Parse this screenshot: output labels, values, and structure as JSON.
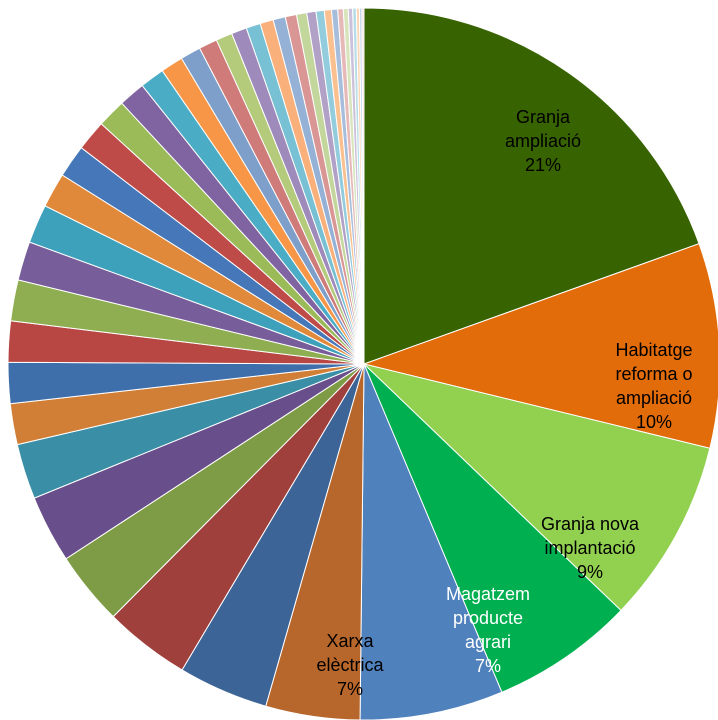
{
  "chart_data": {
    "type": "pie",
    "title": "",
    "slices": [
      {
        "name": "Granja ampliació",
        "value": 21,
        "label_lines": [
          "Granja",
          "ampliació",
          "21%"
        ],
        "color": "#376300"
      },
      {
        "name": "Habitatge reforma o ampliació",
        "value": 10,
        "label_lines": [
          "Habitatge",
          "reforma o",
          "ampliació",
          "10%"
        ],
        "color": "#E26B0A"
      },
      {
        "name": "Granja nova implantació",
        "value": 9,
        "label_lines": [
          "Granja nova",
          "implantació",
          "9%"
        ],
        "color": "#92D050"
      },
      {
        "name": "Magatzem producte agrari",
        "value": 7,
        "label_lines": [
          "Magatzem",
          "producte",
          "agrari",
          "7%"
        ],
        "color": "#00B050"
      },
      {
        "name": "Xarxa elèctrica",
        "value": 7,
        "label_lines": [
          "Xarxa",
          "elèctrica",
          "7%"
        ],
        "color": "#4F81BD"
      },
      {
        "value": 4.6,
        "color": "#B8672C"
      },
      {
        "value": 4.4,
        "color": "#3C6497"
      },
      {
        "value": 4.2,
        "color": "#A0403D"
      },
      {
        "value": 3.6,
        "color": "#7E9B45"
      },
      {
        "value": 3.3,
        "color": "#684E8A"
      },
      {
        "value": 2.7,
        "color": "#3A8FA7"
      },
      {
        "value": 2.0,
        "color": "#D17F36"
      },
      {
        "value": 2.0,
        "color": "#3F6FAB"
      },
      {
        "value": 2.0,
        "color": "#B84744"
      },
      {
        "value": 2.0,
        "color": "#8EAE51"
      },
      {
        "value": 1.9,
        "color": "#775D9A"
      },
      {
        "value": 1.9,
        "color": "#3EA1BB"
      },
      {
        "value": 1.7,
        "color": "#E0893A"
      },
      {
        "value": 1.6,
        "color": "#4677B8"
      },
      {
        "value": 1.5,
        "color": "#BE4B48"
      },
      {
        "value": 1.4,
        "color": "#9BBB59"
      },
      {
        "value": 1.3,
        "color": "#8064A2"
      },
      {
        "value": 1.2,
        "color": "#4BACC6"
      },
      {
        "value": 1.1,
        "color": "#F79646"
      },
      {
        "value": 1.0,
        "color": "#7F9FCB"
      },
      {
        "value": 0.9,
        "color": "#CF7B79"
      },
      {
        "value": 0.8,
        "color": "#B3CB7B"
      },
      {
        "value": 0.75,
        "color": "#9F8BBB"
      },
      {
        "value": 0.7,
        "color": "#78C1D5"
      },
      {
        "value": 0.65,
        "color": "#F9B07A"
      },
      {
        "value": 0.6,
        "color": "#95B1D6"
      },
      {
        "value": 0.55,
        "color": "#D99694"
      },
      {
        "value": 0.5,
        "color": "#C3D69B"
      },
      {
        "value": 0.45,
        "color": "#B2A1C7"
      },
      {
        "value": 0.4,
        "color": "#93CDDD"
      },
      {
        "value": 0.35,
        "color": "#FAC08F"
      },
      {
        "value": 0.3,
        "color": "#A6BDDB"
      },
      {
        "value": 0.27,
        "color": "#E6B9B8"
      },
      {
        "value": 0.24,
        "color": "#D7E4BC"
      },
      {
        "value": 0.21,
        "color": "#CCC1DA"
      },
      {
        "value": 0.18,
        "color": "#B7DEE8"
      },
      {
        "value": 0.15,
        "color": "#FCD5B4"
      },
      {
        "value": 0.12,
        "color": "#C5D5EA"
      },
      {
        "value": 0.1,
        "color": "#F2DCDB"
      }
    ]
  }
}
